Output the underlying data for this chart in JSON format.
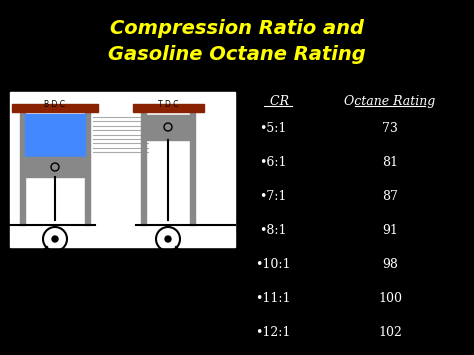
{
  "title_line1": "Compression Ratio and",
  "title_line2": "Gasoline Octane Rating",
  "title_color": "#ffff00",
  "bg_color": "#000000",
  "header_cr": " CR",
  "header_octane": "Octane Rating",
  "header_color": "#ffffff",
  "table_color": "#ffffff",
  "cr_values": [
    "•5:1",
    "•6:1",
    "•7:1",
    "•8:1",
    "•10:1",
    "•11:1",
    "•12:1"
  ],
  "octane_values": [
    "73",
    "81",
    "87",
    "91",
    "98",
    "100",
    "102"
  ],
  "title_fontsize": 14,
  "header_fontsize": 9,
  "table_fontsize": 9,
  "bdc_label": "B D C",
  "tdc_label": "T D C",
  "engine_bg": "#ffffff",
  "blue_fill": "#4488ff",
  "gray_fill": "#888888",
  "red_fill": "#882200",
  "dark_gray": "#666666",
  "line_color": "#aaaaaa"
}
